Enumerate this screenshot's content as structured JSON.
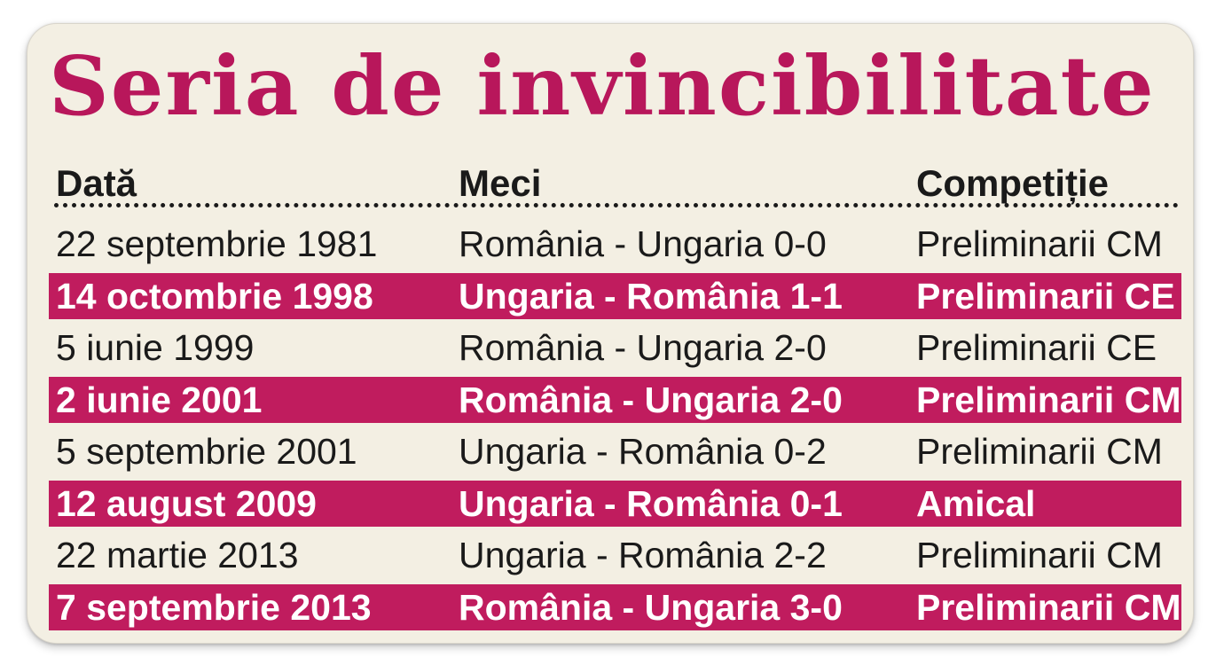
{
  "title": "Seria de invincibilitate",
  "columns": {
    "date": "Dată",
    "match": "Meci",
    "competition": "Competiție"
  },
  "rows": [
    {
      "date": "22 septembrie 1981",
      "match": "România - Ungaria 0-0",
      "competition": "Preliminarii CM",
      "highlighted": false
    },
    {
      "date": "14 octombrie 1998",
      "match": "Ungaria - România 1-1",
      "competition": "Preliminarii CE",
      "highlighted": true
    },
    {
      "date": "5 iunie 1999",
      "match": "România - Ungaria 2-0",
      "competition": "Preliminarii CE",
      "highlighted": false
    },
    {
      "date": "2 iunie 2001",
      "match": "România - Ungaria 2-0",
      "competition": "Preliminarii CM",
      "highlighted": true
    },
    {
      "date": "5 septembrie 2001",
      "match": "Ungaria - România 0-2",
      "competition": "Preliminarii CM",
      "highlighted": false
    },
    {
      "date": "12 august 2009",
      "match": "Ungaria - România 0-1",
      "competition": "Amical",
      "highlighted": true
    },
    {
      "date": "22 martie 2013",
      "match": "Ungaria - România 2-2",
      "competition": "Preliminarii CM",
      "highlighted": false
    },
    {
      "date": "7 septembrie 2013",
      "match": "România - Ungaria 3-0",
      "competition": "Preliminarii CM",
      "highlighted": true
    }
  ],
  "colors": {
    "accent": "#c01c5e",
    "title": "#b8175b",
    "card_background": "#f3efe3",
    "text": "#1a1a1a"
  }
}
